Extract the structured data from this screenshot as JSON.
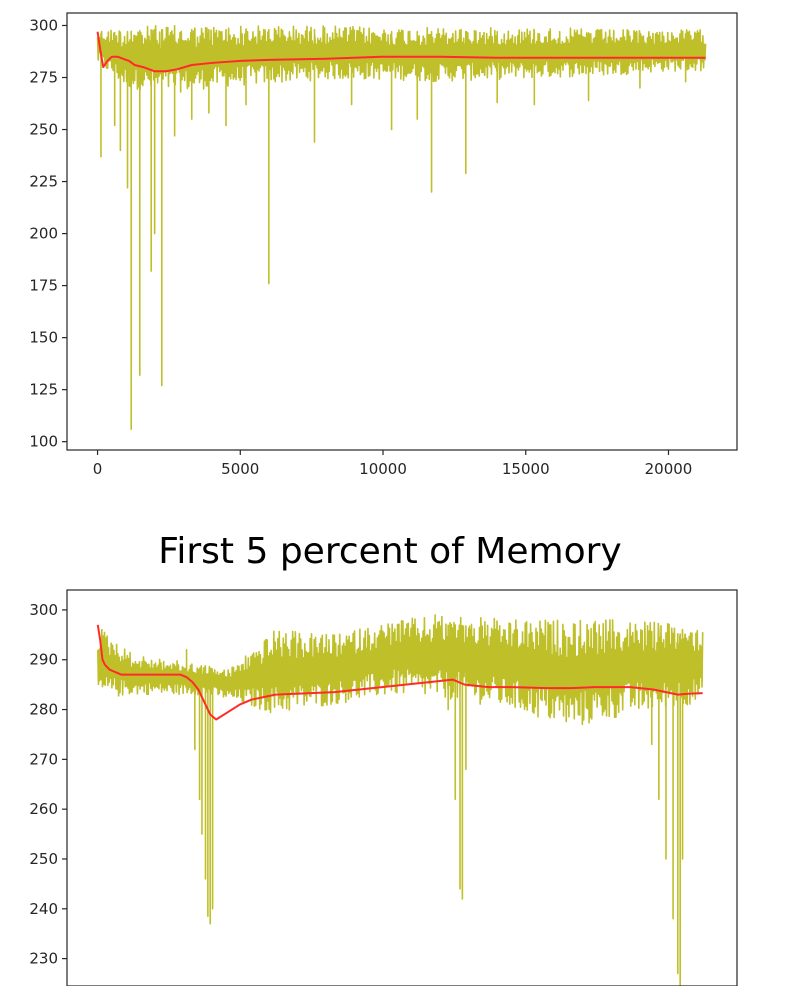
{
  "chart_data": [
    {
      "type": "line",
      "title": "",
      "xlabel": "",
      "ylabel": "",
      "xlim": [
        -1070,
        22400
      ],
      "ylim": [
        96,
        306
      ],
      "grid": false,
      "legend": "none",
      "x_ticks": [
        0,
        5000,
        10000,
        15000,
        20000
      ],
      "x_tick_labels": [
        "0",
        "5000",
        "10000",
        "15000",
        "20000"
      ],
      "y_ticks": [
        100,
        125,
        150,
        175,
        200,
        225,
        250,
        275,
        300
      ],
      "y_tick_labels": [
        "100",
        "125",
        "150",
        "175",
        "200",
        "225",
        "250",
        "275",
        "300"
      ],
      "series": [
        {
          "color": "#bfbf2a",
          "style": "noisy-band",
          "band_x": [
            0,
            1000,
            2000,
            3000,
            4000,
            6000,
            8000,
            10000,
            12000,
            14000,
            16000,
            18000,
            20000,
            21300
          ],
          "band_upper": [
            298,
            299,
            300,
            300,
            300,
            300,
            300,
            299,
            299,
            299,
            299,
            298,
            298,
            298
          ],
          "band_lower": [
            282,
            270,
            268,
            268,
            270,
            272,
            274,
            274,
            273,
            274,
            275,
            276,
            278,
            278
          ],
          "dips": [
            {
              "x": 120,
              "y": 237
            },
            {
              "x": 600,
              "y": 252
            },
            {
              "x": 800,
              "y": 240
            },
            {
              "x": 1050,
              "y": 222
            },
            {
              "x": 1180,
              "y": 106
            },
            {
              "x": 1480,
              "y": 132
            },
            {
              "x": 1880,
              "y": 182
            },
            {
              "x": 2000,
              "y": 200
            },
            {
              "x": 2250,
              "y": 127
            },
            {
              "x": 2700,
              "y": 247
            },
            {
              "x": 3300,
              "y": 255
            },
            {
              "x": 3900,
              "y": 258
            },
            {
              "x": 4500,
              "y": 252
            },
            {
              "x": 5200,
              "y": 262
            },
            {
              "x": 6000,
              "y": 176
            },
            {
              "x": 7600,
              "y": 244
            },
            {
              "x": 8900,
              "y": 262
            },
            {
              "x": 10300,
              "y": 250
            },
            {
              "x": 11200,
              "y": 255
            },
            {
              "x": 11700,
              "y": 220
            },
            {
              "x": 12900,
              "y": 229
            },
            {
              "x": 14000,
              "y": 263
            },
            {
              "x": 15300,
              "y": 262
            },
            {
              "x": 17200,
              "y": 264
            },
            {
              "x": 19000,
              "y": 270
            },
            {
              "x": 20600,
              "y": 273
            }
          ]
        },
        {
          "color": "#ff2a2a",
          "x": [
            0,
            100,
            200,
            350,
            500,
            700,
            900,
            1100,
            1300,
            1600,
            2000,
            2400,
            2800,
            3300,
            4000,
            5000,
            6000,
            8000,
            10000,
            12000,
            14000,
            16000,
            18000,
            20000,
            21300
          ],
          "y": [
            297,
            288,
            280,
            283,
            285,
            285,
            284,
            283,
            281,
            280,
            278,
            278,
            279,
            281,
            282,
            283,
            283.5,
            284,
            285,
            285,
            284.5,
            284.5,
            284.5,
            284.5,
            284.5
          ]
        }
      ]
    },
    {
      "type": "line",
      "title": "First 5 percent of  Memory",
      "xlabel": "",
      "ylabel": "",
      "xlim": [
        -26,
        540
      ],
      "ylim": [
        224.5,
        304
      ],
      "grid": false,
      "legend": "none",
      "y_ticks": [
        230,
        240,
        250,
        260,
        270,
        280,
        290,
        300
      ],
      "y_tick_labels": [
        "230",
        "240",
        "250",
        "260",
        "270",
        "280",
        "290",
        "300"
      ],
      "series": [
        {
          "color": "#bfbf2a",
          "style": "noisy-band",
          "band_x": [
            0,
            30,
            60,
            90,
            110,
            150,
            200,
            250,
            300,
            350,
            400,
            450,
            500,
            511
          ],
          "band_upper": [
            297,
            291,
            290,
            289,
            288,
            296,
            295,
            298,
            299,
            298,
            298,
            298,
            297,
            297
          ],
          "band_lower": [
            282,
            283,
            283,
            283,
            282,
            279,
            281,
            283,
            282,
            280,
            276,
            279,
            281,
            281
          ],
          "dips": [
            {
              "x": 75,
              "y": 292
            },
            {
              "x": 82,
              "y": 272
            },
            {
              "x": 86,
              "y": 262
            },
            {
              "x": 88,
              "y": 255
            },
            {
              "x": 91,
              "y": 246
            },
            {
              "x": 93,
              "y": 238.5
            },
            {
              "x": 95,
              "y": 237
            },
            {
              "x": 97,
              "y": 240
            },
            {
              "x": 100,
              "y": 287
            },
            {
              "x": 285,
              "y": 299
            },
            {
              "x": 290,
              "y": 292
            },
            {
              "x": 296,
              "y": 280
            },
            {
              "x": 302,
              "y": 262
            },
            {
              "x": 306,
              "y": 244
            },
            {
              "x": 308,
              "y": 242
            },
            {
              "x": 311,
              "y": 268
            },
            {
              "x": 314,
              "y": 286
            },
            {
              "x": 460,
              "y": 281
            },
            {
              "x": 468,
              "y": 273
            },
            {
              "x": 474,
              "y": 262
            },
            {
              "x": 480,
              "y": 250
            },
            {
              "x": 486,
              "y": 238
            },
            {
              "x": 490,
              "y": 227
            },
            {
              "x": 492,
              "y": 224
            },
            {
              "x": 494,
              "y": 250
            },
            {
              "x": 496,
              "y": 290
            }
          ]
        },
        {
          "color": "#ff2a2a",
          "x": [
            0,
            2,
            4,
            6,
            10,
            15,
            20,
            25,
            30,
            40,
            50,
            60,
            70,
            75,
            80,
            85,
            90,
            95,
            100,
            110,
            120,
            130,
            140,
            150,
            170,
            200,
            240,
            280,
            300,
            310,
            330,
            350,
            380,
            400,
            420,
            450,
            470,
            480,
            490,
            500,
            511
          ],
          "y": [
            297,
            294,
            290,
            289,
            288,
            287.5,
            287,
            287,
            287,
            287,
            287,
            287,
            287,
            286.5,
            285.5,
            284,
            281.5,
            279,
            278,
            279.5,
            281,
            282,
            282.5,
            283,
            283.2,
            283.5,
            284.5,
            285.5,
            286,
            285,
            284.5,
            284.5,
            284.3,
            284.3,
            284.5,
            284.5,
            284,
            283.5,
            283,
            283.2,
            283.3
          ]
        }
      ]
    }
  ]
}
